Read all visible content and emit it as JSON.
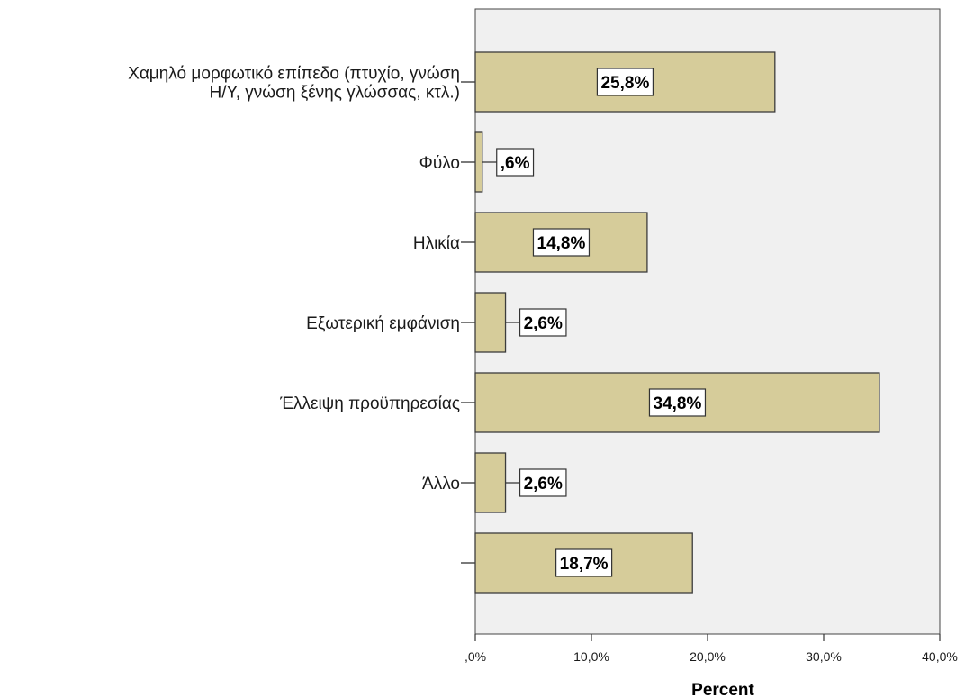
{
  "colors": {
    "plot_background": "#f0f0f0",
    "bar_fill": "#d6cc9a",
    "bar_stroke": "#3c3c3c",
    "label_box": "#ffffff"
  },
  "chart_data": {
    "type": "bar",
    "orientation": "horizontal",
    "categories": [
      [
        "Χαμηλό μορφωτικό επίπεδο (πτυχίο, γνώση",
        "Η/Υ, γνώση ξένης γλώσσας, κτλ.)"
      ],
      [
        "Φύλο"
      ],
      [
        "Ηλικία"
      ],
      [
        "Εξωτερική εμφάνιση"
      ],
      [
        "Έλλειψη προϋπηρεσίας"
      ],
      [
        "Άλλο"
      ],
      [
        ""
      ]
    ],
    "values": [
      25.8,
      0.6,
      14.8,
      2.6,
      34.8,
      2.6,
      18.7
    ],
    "data_labels": [
      "25,8%",
      ",6%",
      "14,8%",
      "2,6%",
      "34,8%",
      "2,6%",
      "18,7%"
    ],
    "xlim": [
      0,
      40
    ],
    "xticks": [
      0,
      10,
      20,
      30,
      40
    ],
    "xtick_labels": [
      ",0%",
      "10,0%",
      "20,0%",
      "30,0%",
      "40,0%"
    ],
    "xlabel": "Percent",
    "ylabel": "",
    "title": "",
    "grid": false
  }
}
